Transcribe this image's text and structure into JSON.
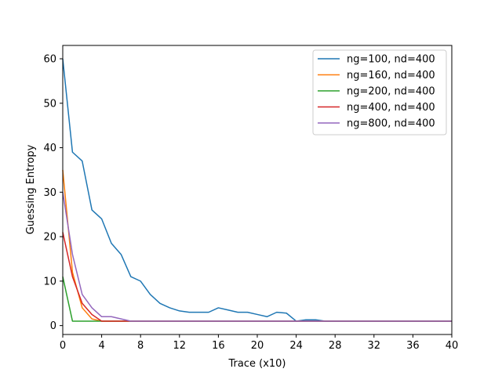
{
  "chart_data": {
    "type": "line",
    "xlabel": "Trace (x10)",
    "ylabel": "Guessing Entropy",
    "xlim": [
      0,
      40
    ],
    "ylim": [
      -2,
      63
    ],
    "xticks": [
      0,
      4,
      8,
      12,
      16,
      20,
      24,
      28,
      32,
      36,
      40
    ],
    "yticks": [
      0,
      10,
      20,
      30,
      40,
      50,
      60
    ],
    "grid": false,
    "legend_position": "top-right",
    "series": [
      {
        "name": "ng=100, nd=400",
        "color": "#1f77b4",
        "x": [
          0,
          1,
          2,
          3,
          4,
          5,
          6,
          7,
          8,
          9,
          10,
          11,
          12,
          13,
          14,
          15,
          16,
          17,
          18,
          19,
          20,
          21,
          22,
          23,
          24,
          25,
          26,
          27,
          28,
          29,
          30,
          31,
          32,
          33,
          34,
          35,
          36,
          37,
          38,
          39,
          40
        ],
        "y": [
          60,
          39,
          37,
          26,
          24,
          18.5,
          16,
          11,
          10,
          7,
          5,
          4,
          3.3,
          3,
          3,
          3,
          4,
          3.5,
          3,
          3,
          2.5,
          2,
          3,
          2.8,
          1,
          1.3,
          1.3,
          1,
          1,
          1,
          1,
          1,
          1,
          1,
          1,
          1,
          1,
          1,
          1,
          1,
          1
        ]
      },
      {
        "name": "ng=160, nd=400",
        "color": "#ff7f0e",
        "x": [
          0,
          1,
          2,
          3,
          4,
          5,
          6,
          7,
          8,
          9,
          10,
          11,
          12,
          13,
          14,
          15,
          16,
          17,
          18,
          19,
          20,
          21,
          22,
          23,
          24,
          25,
          26,
          27,
          28,
          29,
          30,
          31,
          32,
          33,
          34,
          35,
          36,
          37,
          38,
          39,
          40
        ],
        "y": [
          35,
          12,
          4,
          1.5,
          1,
          1,
          1,
          1,
          1,
          1,
          1,
          1,
          1,
          1,
          1,
          1,
          1,
          1,
          1,
          1,
          1,
          1,
          1,
          1,
          1,
          1,
          1,
          1,
          1,
          1,
          1,
          1,
          1,
          1,
          1,
          1,
          1,
          1,
          1,
          1,
          1
        ]
      },
      {
        "name": "ng=200, nd=400",
        "color": "#2ca02c",
        "x": [
          0,
          1,
          2,
          3,
          4,
          5,
          6,
          7,
          8,
          9,
          10,
          11,
          12,
          13,
          14,
          15,
          16,
          17,
          18,
          19,
          20,
          21,
          22,
          23,
          24,
          25,
          26,
          27,
          28,
          29,
          30,
          31,
          32,
          33,
          34,
          35,
          36,
          37,
          38,
          39,
          40
        ],
        "y": [
          11,
          1,
          1,
          1,
          1,
          1,
          1,
          1,
          1,
          1,
          1,
          1,
          1,
          1,
          1,
          1,
          1,
          1,
          1,
          1,
          1,
          1,
          1,
          1,
          1,
          1,
          1,
          1,
          1,
          1,
          1,
          1,
          1,
          1,
          1,
          1,
          1,
          1,
          1,
          1,
          1
        ]
      },
      {
        "name": "ng=400, nd=400",
        "color": "#d62728",
        "x": [
          0,
          1,
          2,
          3,
          4,
          5,
          6,
          7,
          8,
          9,
          10,
          11,
          12,
          13,
          14,
          15,
          16,
          17,
          18,
          19,
          20,
          21,
          22,
          23,
          24,
          25,
          26,
          27,
          28,
          29,
          30,
          31,
          32,
          33,
          34,
          35,
          36,
          37,
          38,
          39,
          40
        ],
        "y": [
          21,
          11,
          5,
          2.5,
          1,
          1,
          1,
          1,
          1,
          1,
          1,
          1,
          1,
          1,
          1,
          1,
          1,
          1,
          1,
          1,
          1,
          1,
          1,
          1,
          1,
          1,
          1,
          1,
          1,
          1,
          1,
          1,
          1,
          1,
          1,
          1,
          1,
          1,
          1,
          1,
          1
        ]
      },
      {
        "name": "ng=800, nd=400",
        "color": "#9467bd",
        "x": [
          0,
          1,
          2,
          3,
          4,
          5,
          6,
          7,
          8,
          9,
          10,
          11,
          12,
          13,
          14,
          15,
          16,
          17,
          18,
          19,
          20,
          21,
          22,
          23,
          24,
          25,
          26,
          27,
          28,
          29,
          30,
          31,
          32,
          33,
          34,
          35,
          36,
          37,
          38,
          39,
          40
        ],
        "y": [
          30,
          16,
          7,
          4,
          2,
          2,
          1.5,
          1,
          1,
          1,
          1,
          1,
          1,
          1,
          1,
          1,
          1,
          1,
          1,
          1,
          1,
          1,
          1,
          1,
          1,
          1,
          1,
          1,
          1,
          1,
          1,
          1,
          1,
          1,
          1,
          1,
          1,
          1,
          1,
          1,
          1
        ]
      }
    ]
  }
}
